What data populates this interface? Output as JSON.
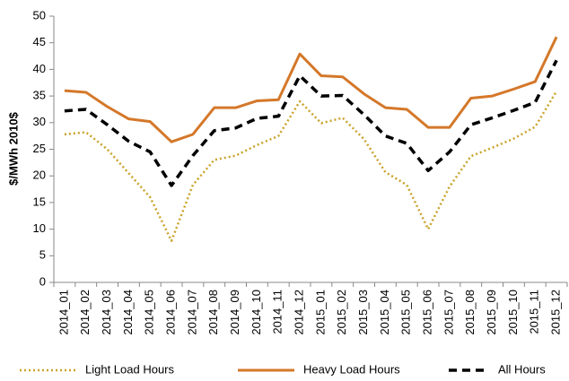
{
  "chart_data": {
    "type": "line",
    "y_label": "$/MWh 2010$",
    "categories": [
      "2014_01",
      "2014_02",
      "2014_03",
      "2014_04",
      "2014_05",
      "2014_06",
      "2014_07",
      "2014_08",
      "2014_09",
      "2014_10",
      "2014_11",
      "2014_12",
      "2015_01",
      "2015_02",
      "2015_03",
      "2015_04",
      "2015_05",
      "2015_06",
      "2015_07",
      "2015_08",
      "2015_09",
      "2015_10",
      "2015_11",
      "2015_12"
    ],
    "series": [
      {
        "name": "Light Load Hours",
        "color": "#c9a227",
        "dash": "dotted",
        "values": [
          27.8,
          28.2,
          25,
          20.5,
          16,
          7.8,
          18.3,
          23,
          23.8,
          25.8,
          27.5,
          34,
          29.9,
          30.9,
          26.9,
          20.7,
          18.3,
          10,
          18,
          23.7,
          25.3,
          27,
          29.2,
          35.9
        ]
      },
      {
        "name": "Heavy Load Hours",
        "color": "#d4782a",
        "dash": "solid",
        "values": [
          36,
          35.7,
          33,
          30.7,
          30.2,
          26.4,
          27.8,
          32.8,
          32.8,
          34.1,
          34.3,
          42.9,
          38.8,
          38.6,
          35.4,
          32.8,
          32.5,
          29.1,
          29.1,
          34.6,
          35,
          36.3,
          37.7,
          46.1
        ]
      },
      {
        "name": "All Hours",
        "color": "#000000",
        "dash": "dashed",
        "values": [
          32.2,
          32.5,
          29.6,
          26.5,
          24.5,
          18.2,
          23.8,
          28.5,
          29,
          30.8,
          31.2,
          38.8,
          35,
          35.1,
          31.5,
          27.5,
          26.1,
          21,
          24.5,
          29.6,
          30.9,
          32.3,
          33.8,
          41.7
        ]
      }
    ],
    "ylim": [
      0,
      50
    ],
    "yticks": [
      0,
      5,
      10,
      15,
      20,
      25,
      30,
      35,
      40,
      45,
      50
    ]
  }
}
